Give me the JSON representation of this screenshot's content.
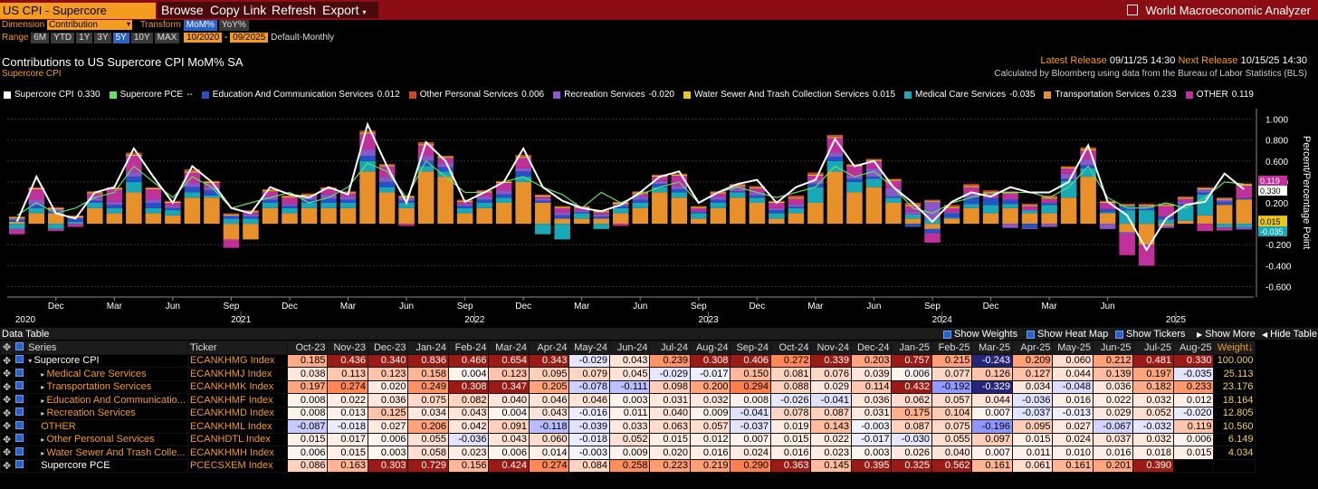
{
  "topbar": {
    "security": "US CPI - Supercore",
    "menus": [
      "Browse",
      "Copy Link",
      "Refresh",
      "Export"
    ],
    "app_title": "World Macroeconomic Analyzer"
  },
  "controls": {
    "dimension_label": "Dimension",
    "dimension_value": "Contribution",
    "transform_label": "Transform",
    "transform_options": [
      "MoM%",
      "YoY%"
    ],
    "range_label": "Range",
    "range_options": [
      "6M",
      "YTD",
      "1Y",
      "3Y",
      "5Y",
      "10Y",
      "MAX"
    ],
    "range_active": "5Y",
    "start": "10/2020",
    "end": "09/2025",
    "frequency": "Default-Monthly"
  },
  "chart_header": {
    "title": "Contributions to US Supercore CPI MoM% SA",
    "subtitle": "Supercore CPI",
    "latest_label": "Latest Release",
    "latest": "09/11/25 14:30",
    "next_label": "Next Release",
    "next": "10/15/25 14:30",
    "calc": "Calculated by Bloomberg using data from the Bureau of Labor Statistics (BLS)"
  },
  "legend": [
    {
      "name": "Supercore CPI",
      "value": "0.330",
      "color": "#ffffff"
    },
    {
      "name": "Supercore PCE",
      "value": "--",
      "color": "#5ee06a"
    },
    {
      "name": "Education And Communication Services",
      "value": "0.012",
      "color": "#2552c8"
    },
    {
      "name": "Other Personal Services",
      "value": "0.006",
      "color": "#c8462a"
    },
    {
      "name": "Recreation Services",
      "value": "-0.020",
      "color": "#8a56c8"
    },
    {
      "name": "Water Sewer And Trash Collection Services",
      "value": "0.015",
      "color": "#e8c81c"
    },
    {
      "name": "Medical Care Services",
      "value": "-0.035",
      "color": "#18a8b8"
    },
    {
      "name": "Transportation Services",
      "value": "0.233",
      "color": "#e8902a"
    },
    {
      "name": "OTHER",
      "value": "0.119",
      "color": "#c0309a"
    }
  ],
  "chart_data": {
    "type": "bar",
    "title": "Contributions to US Supercore CPI MoM% SA",
    "ylabel": "Percent/Percentage Point",
    "ylim": [
      -0.7,
      1.1
    ],
    "yticks": [
      "1.000",
      "0.800",
      "0.600",
      "0.400",
      "0.200",
      "-0.200",
      "-0.400",
      "-0.600"
    ],
    "yticks_values": [
      1.0,
      0.8,
      0.6,
      0.4,
      0.2,
      -0.2,
      -0.4,
      -0.6
    ],
    "x_month_labels": [
      "Dec",
      "Mar",
      "Jun",
      "Sep",
      "Dec",
      "Mar",
      "Jun",
      "Sep",
      "Dec",
      "Mar",
      "Jun",
      "Sep",
      "Dec",
      "Mar",
      "Jun",
      "Sep",
      "Dec",
      "Mar",
      "Jun"
    ],
    "year_labels": [
      "2020",
      "2021",
      "2022",
      "2023",
      "2024",
      "2025"
    ],
    "last_value_badges": [
      {
        "text": "0.119",
        "color": "#c0309a"
      },
      {
        "text": "0.330",
        "color": "#ffffff"
      },
      {
        "text": "0.233",
        "color": "#e8902a"
      },
      {
        "text": "0.015",
        "color": "#e8c81c"
      },
      {
        "text": "-0.035",
        "color": "#18a8b8"
      }
    ],
    "line_supercore_cpi": [
      0.02,
      0.45,
      0.1,
      0.05,
      0.3,
      0.35,
      0.72,
      0.45,
      0.2,
      0.55,
      0.4,
      0.15,
      0.1,
      0.35,
      0.28,
      0.25,
      0.35,
      0.28,
      0.95,
      0.55,
      0.2,
      0.78,
      0.6,
      0.21,
      0.3,
      0.4,
      0.72,
      0.35,
      0.22,
      0.15,
      0.12,
      0.18,
      0.3,
      0.45,
      0.5,
      0.2,
      0.3,
      0.38,
      0.42,
      0.2,
      0.35,
      0.42,
      0.81,
      0.55,
      0.6,
      0.35,
      0.2,
      0.02,
      0.21,
      0.3,
      0.26,
      0.35,
      0.3,
      0.3,
      0.4,
      0.75,
      0.21,
      0.08,
      -0.25,
      0.05,
      0.18,
      0.21,
      0.48,
      0.33
    ],
    "line_supercore_pce": [
      0.08,
      0.2,
      0.1,
      0.15,
      0.25,
      0.3,
      0.55,
      0.4,
      0.25,
      0.45,
      0.35,
      0.15,
      0.2,
      0.25,
      0.3,
      0.2,
      0.25,
      0.35,
      0.58,
      0.5,
      0.25,
      0.6,
      0.45,
      0.3,
      0.3,
      0.4,
      0.45,
      0.35,
      0.28,
      0.15,
      0.3,
      0.2,
      0.28,
      0.35,
      0.4,
      0.2,
      0.3,
      0.35,
      0.3,
      0.25,
      0.3,
      0.35,
      0.55,
      0.45,
      0.5,
      0.35,
      0.15,
      0.1,
      0.2,
      0.25,
      0.3,
      0.3,
      0.3,
      0.25,
      0.35,
      0.55,
      0.25,
      0.15,
      0.15,
      0.2,
      0.15,
      0.25,
      0.4,
      0.38
    ],
    "series": [
      {
        "name": "Transportation Services",
        "values": [
          0.02,
          0.1,
          0.1,
          0.0,
          0.15,
          0.1,
          0.3,
          0.1,
          0.08,
          0.25,
          0.25,
          -0.15,
          -0.15,
          0.15,
          0.1,
          0.15,
          0.15,
          0.15,
          0.5,
          0.3,
          0.15,
          0.5,
          0.45,
          0.1,
          0.15,
          0.2,
          0.4,
          0.2,
          0.05,
          0.05,
          0.05,
          0.1,
          0.15,
          0.3,
          0.25,
          0.05,
          0.15,
          0.25,
          0.2,
          0.05,
          0.1,
          0.2,
          0.5,
          0.3,
          0.35,
          0.2,
          0.05,
          -0.05,
          0.05,
          0.15,
          0.1,
          0.15,
          0.1,
          0.1,
          0.25,
          0.45,
          0.1,
          -0.08,
          -0.2,
          -0.02,
          0.03,
          0.08,
          0.18,
          0.233
        ]
      },
      {
        "name": "Medical Care Services",
        "values": [
          -0.05,
          0.05,
          -0.05,
          0.02,
          0.05,
          0.05,
          0.1,
          0.05,
          0.05,
          0.05,
          0.02,
          0.05,
          0.05,
          0.05,
          0.05,
          0.05,
          0.05,
          0.05,
          0.1,
          0.05,
          0.05,
          0.05,
          0.05,
          0.05,
          0.05,
          0.05,
          0.05,
          -0.1,
          -0.15,
          0.05,
          -0.05,
          0.05,
          0.05,
          0.05,
          0.05,
          0.05,
          0.05,
          0.05,
          0.05,
          0.05,
          0.05,
          0.15,
          0.1,
          0.1,
          0.08,
          0.05,
          0.04,
          0.04,
          0.01,
          0.04,
          0.08,
          0.04,
          0.03,
          0.08,
          0.16,
          0.08,
          0.01,
          0.13,
          0.13,
          0.04,
          0.14,
          0.2,
          -0.035,
          -0.035
        ]
      },
      {
        "name": "Education And Communication Services",
        "values": [
          0.02,
          0.03,
          0.02,
          0.03,
          0.02,
          0.03,
          0.05,
          0.05,
          0.02,
          0.05,
          0.05,
          0.02,
          0.02,
          0.03,
          0.02,
          0.03,
          0.04,
          0.03,
          0.05,
          0.05,
          0.02,
          0.05,
          0.04,
          0.02,
          0.03,
          0.03,
          0.05,
          0.02,
          0.03,
          0.01,
          0.02,
          0.02,
          0.03,
          0.03,
          0.03,
          0.01,
          0.03,
          0.01,
          0.02,
          0.03,
          0.01,
          0.03,
          0.04,
          0.03,
          0.02,
          0.01,
          -0.03,
          -0.04,
          0.04,
          0.06,
          0.06,
          0.04,
          -0.04,
          0.02,
          0.02,
          0.03,
          0.03,
          0.04,
          0.02,
          0.03,
          0.02,
          0.02,
          0.03,
          0.012
        ]
      },
      {
        "name": "Recreation Services",
        "values": [
          0.01,
          0.05,
          0.02,
          0.01,
          0.03,
          0.03,
          0.05,
          0.03,
          0.02,
          0.04,
          0.03,
          0.01,
          0.02,
          0.03,
          0.02,
          0.02,
          0.04,
          0.03,
          0.06,
          0.05,
          0.03,
          0.05,
          0.04,
          0.02,
          0.03,
          0.04,
          0.03,
          0.02,
          0.03,
          0.02,
          0.02,
          0.02,
          0.03,
          0.03,
          0.03,
          0.01,
          0.03,
          0.02,
          0.03,
          0.02,
          0.03,
          0.04,
          0.04,
          0.03,
          0.08,
          0.08,
          0.03,
          0.17,
          0.01,
          0.04,
          0.01,
          -0.04,
          -0.01,
          -0.03,
          0.05,
          0.06,
          -0.05,
          -0.02,
          0.02,
          -0.02,
          0.02,
          0.03,
          0.02,
          -0.02
        ]
      },
      {
        "name": "OTHER",
        "values": [
          -0.05,
          0.1,
          -0.02,
          -0.03,
          0.04,
          0.12,
          0.15,
          0.1,
          0.03,
          0.1,
          0.04,
          -0.08,
          0.02,
          0.05,
          0.06,
          0.02,
          0.05,
          0.03,
          0.15,
          0.1,
          -0.02,
          0.1,
          0.05,
          0.02,
          0.04,
          0.07,
          0.1,
          0.02,
          0.04,
          0.02,
          0.02,
          -0.02,
          0.03,
          0.04,
          0.1,
          0.03,
          0.03,
          0.03,
          0.04,
          0.05,
          0.05,
          0.04,
          0.14,
          0.09,
          0.07,
          0.07,
          0.05,
          -0.09,
          0.04,
          0.06,
          0.04,
          0.06,
          0.04,
          0.04,
          0.05,
          0.08,
          0.06,
          -0.2,
          -0.2,
          0.1,
          0.03,
          -0.07,
          -0.03,
          0.119
        ]
      },
      {
        "name": "Water Sewer And Trash Collection Services",
        "values": [
          0.01,
          0.01,
          0.01,
          0.01,
          0.01,
          0.01,
          0.01,
          0.01,
          0.01,
          0.01,
          0.01,
          0.01,
          0.01,
          0.01,
          0.01,
          0.01,
          0.01,
          0.01,
          0.01,
          0.01,
          0.01,
          0.01,
          0.01,
          0.01,
          0.01,
          0.01,
          0.01,
          0.01,
          0.01,
          0.01,
          0.01,
          0.01,
          0.01,
          0.01,
          0.01,
          0.01,
          0.01,
          0.01,
          0.01,
          0.01,
          0.01,
          0.01,
          0.01,
          0.01,
          0.01,
          0.01,
          0.01,
          0.01,
          0.01,
          0.01,
          0.01,
          0.01,
          0.01,
          0.01,
          0.01,
          0.01,
          0.01,
          0.01,
          0.01,
          0.01,
          0.01,
          0.01,
          0.01,
          0.015
        ]
      },
      {
        "name": "Other Personal Services",
        "values": [
          0.01,
          0.01,
          0.01,
          0.01,
          0.01,
          0.01,
          0.02,
          0.01,
          0.01,
          0.02,
          0.01,
          0.01,
          0.01,
          0.01,
          0.01,
          0.01,
          0.01,
          0.01,
          0.02,
          0.01,
          0.01,
          0.02,
          0.01,
          0.01,
          0.01,
          0.01,
          0.02,
          0.01,
          0.01,
          0.01,
          0.01,
          0.01,
          0.01,
          0.01,
          0.01,
          0.01,
          0.01,
          0.01,
          0.01,
          0.01,
          0.02,
          0.02,
          0.02,
          0.01,
          0.01,
          0.01,
          0.02,
          0.01,
          0.02,
          0.02,
          0.02,
          0.01,
          0.01,
          0.02,
          0.01,
          0.02,
          0.01,
          0.01,
          0.01,
          0.01,
          0.01,
          0.01,
          0.01,
          0.006
        ]
      }
    ]
  },
  "table": {
    "title": "Data Table",
    "options": [
      "Show Weights",
      "Show Heat Map",
      "Show Tickers",
      "Show More",
      "Hide Table"
    ],
    "series_header": "Series",
    "ticker_header": "Ticker",
    "weight_header": "Weight",
    "months": [
      "Oct-23",
      "Nov-23",
      "Dec-23",
      "Jan-24",
      "Feb-24",
      "Mar-24",
      "Apr-24",
      "May-24",
      "Jun-24",
      "Jul-24",
      "Aug-24",
      "Sep-24",
      "Oct-24",
      "Nov-24",
      "Dec-24",
      "Jan-25",
      "Feb-25",
      "Mar-25",
      "Apr-25",
      "May-25",
      "Jun-25",
      "Jul-25",
      "Aug-25"
    ],
    "rows": [
      {
        "name": "Supercore CPI",
        "ticker": "ECANKHMG Index",
        "weight": "100.000",
        "values": [
          "0.185",
          "0.436",
          "0.340",
          "0.836",
          "0.466",
          "0.654",
          "0.343",
          "-0.029",
          "0.043",
          "0.239",
          "0.308",
          "0.406",
          "0.272",
          "0.339",
          "0.203",
          "0.757",
          "0.215",
          "-0.243",
          "0.209",
          "0.060",
          "0.212",
          "0.481",
          "0.330"
        ]
      },
      {
        "name": "Medical Care Services",
        "ticker": "ECANKHMJ Index",
        "weight": "25.113",
        "values": [
          "0.038",
          "0.113",
          "0.123",
          "0.158",
          "0.004",
          "0.123",
          "0.095",
          "0.079",
          "0.045",
          "-0.029",
          "-0.017",
          "0.150",
          "0.081",
          "0.076",
          "0.039",
          "0.006",
          "0.077",
          "0.126",
          "0.127",
          "0.044",
          "0.139",
          "0.197",
          "-0.035"
        ]
      },
      {
        "name": "Transportation Services",
        "ticker": "ECANKHMK Index",
        "weight": "23.176",
        "values": [
          "0.197",
          "0.274",
          "0.020",
          "0.249",
          "0.308",
          "0.347",
          "0.205",
          "-0.078",
          "-0.111",
          "0.098",
          "0.200",
          "0.294",
          "0.088",
          "0.029",
          "0.114",
          "0.432",
          "-0.192",
          "-0.329",
          "0.034",
          "-0.048",
          "0.036",
          "0.182",
          "0.233"
        ]
      },
      {
        "name": "Education And Communicatio...",
        "ticker": "ECANKHMF Index",
        "weight": "18.164",
        "values": [
          "0.008",
          "0.022",
          "0.036",
          "0.075",
          "0.082",
          "0.040",
          "0.046",
          "0.046",
          "0.003",
          "0.031",
          "0.032",
          "0.008",
          "-0.026",
          "-0.041",
          "0.036",
          "0.062",
          "0.057",
          "0.044",
          "-0.036",
          "0.016",
          "0.022",
          "0.032",
          "0.012"
        ]
      },
      {
        "name": "Recreation Services",
        "ticker": "ECANKHMD Index",
        "weight": "12.805",
        "values": [
          "0.008",
          "0.013",
          "0.125",
          "0.034",
          "0.043",
          "0.004",
          "0.043",
          "-0.016",
          "0.011",
          "0.040",
          "0.009",
          "-0.041",
          "0.078",
          "0.087",
          "0.031",
          "0.175",
          "0.104",
          "0.007",
          "-0.037",
          "-0.013",
          "0.029",
          "0.052",
          "-0.020"
        ]
      },
      {
        "name": "OTHER",
        "ticker": "ECANKHML Index",
        "weight": "10.560",
        "values": [
          "-0.087",
          "-0.018",
          "0.027",
          "0.206",
          "0.042",
          "0.091",
          "-0.118",
          "-0.039",
          "0.033",
          "0.063",
          "0.057",
          "-0.037",
          "0.019",
          "0.143",
          "-0.003",
          "0.087",
          "0.075",
          "-0.196",
          "0.095",
          "0.027",
          "-0.067",
          "-0.032",
          "0.119"
        ]
      },
      {
        "name": "Other Personal Services",
        "ticker": "ECANHDTL Index",
        "weight": "6.149",
        "values": [
          "0.015",
          "0.017",
          "0.006",
          "0.055",
          "-0.036",
          "0.043",
          "0.060",
          "-0.018",
          "0.052",
          "0.015",
          "0.012",
          "0.007",
          "0.015",
          "0.022",
          "-0.017",
          "-0.030",
          "0.055",
          "0.097",
          "0.015",
          "0.024",
          "0.037",
          "0.032",
          "0.006"
        ]
      },
      {
        "name": "Water Sewer And Trash Colle...",
        "ticker": "ECANKHMH Index",
        "weight": "4.034",
        "values": [
          "0.006",
          "0.015",
          "0.003",
          "0.058",
          "0.023",
          "0.006",
          "0.014",
          "-0.003",
          "0.009",
          "0.020",
          "0.016",
          "0.024",
          "0.016",
          "0.023",
          "0.003",
          "0.026",
          "0.040",
          "0.007",
          "0.011",
          "0.010",
          "0.016",
          "0.018",
          "0.015"
        ]
      },
      {
        "name": "Supercore PCE",
        "ticker": "PCECSXEM Index",
        "weight": "",
        "values": [
          "0.086",
          "0.163",
          "0.303",
          "0.729",
          "0.156",
          "0.424",
          "0.274",
          "0.084",
          "0.258",
          "0.223",
          "0.219",
          "0.290",
          "0.363",
          "0.145",
          "0.395",
          "0.325",
          "0.562",
          "0.161",
          "0.061",
          "0.161",
          "0.201",
          "0.390",
          ""
        ]
      }
    ]
  }
}
